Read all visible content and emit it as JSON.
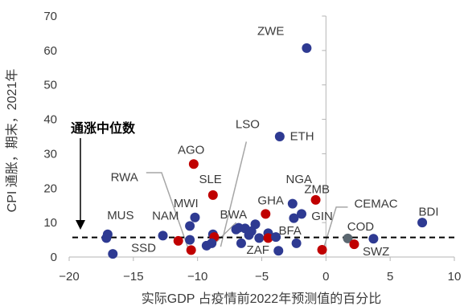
{
  "chart_data": {
    "type": "scatter",
    "xlabel": "实际GDP 占疫情前2022年预测值的百分比",
    "ylabel": "CPI 通胀，期末，2021年",
    "xlim": [
      -20,
      10
    ],
    "ylim": [
      0,
      70
    ],
    "x_ticks": [
      -20,
      -15,
      -10,
      -5,
      0,
      5,
      10
    ],
    "y_ticks": [
      0,
      10,
      20,
      30,
      40,
      50,
      60,
      70
    ],
    "x_tick_labels": [
      "−20",
      "−15",
      "−10",
      "−5",
      "0",
      "5",
      "10"
    ],
    "y_tick_labels": [
      "0",
      "10",
      "20",
      "30",
      "40",
      "50",
      "60",
      "70"
    ],
    "grid": false,
    "median": {
      "value": 5.7,
      "label": "通涨中位数"
    },
    "colors": {
      "blue": "#2E3A92",
      "red": "#C00000",
      "gray": "#5B6770",
      "median": "#000000",
      "axis": "#b5b5b5"
    },
    "points": [
      {
        "x": -1.5,
        "y": 60.7,
        "color": "blue"
      },
      {
        "x": -3.6,
        "y": 35.0,
        "color": "blue"
      },
      {
        "x": -10.3,
        "y": 27.0,
        "color": "red"
      },
      {
        "x": -8.8,
        "y": 18.0,
        "color": "red"
      },
      {
        "x": -2.6,
        "y": 15.5,
        "color": "blue"
      },
      {
        "x": -0.8,
        "y": 16.6,
        "color": "red"
      },
      {
        "x": -4.7,
        "y": 12.5,
        "color": "red"
      },
      {
        "x": -1.9,
        "y": 12.5,
        "color": "blue"
      },
      {
        "x": -2.5,
        "y": 11.3,
        "color": "blue"
      },
      {
        "x": -10.2,
        "y": 11.5,
        "color": "blue"
      },
      {
        "x": -10.6,
        "y": 9.0,
        "color": "blue"
      },
      {
        "x": 7.5,
        "y": 10.0,
        "color": "blue"
      },
      {
        "x": -5.5,
        "y": 9.5,
        "color": "blue"
      },
      {
        "x": -6.8,
        "y": 8.5,
        "color": "blue"
      },
      {
        "x": -6.3,
        "y": 8.3,
        "color": "blue"
      },
      {
        "x": -7.0,
        "y": 8.0,
        "color": "blue"
      },
      {
        "x": -5.8,
        "y": 7.5,
        "color": "blue"
      },
      {
        "x": -8.8,
        "y": 6.6,
        "color": "blue"
      },
      {
        "x": -6.0,
        "y": 6.4,
        "color": "blue"
      },
      {
        "x": -5.2,
        "y": 5.5,
        "color": "blue"
      },
      {
        "x": -4.5,
        "y": 6.9,
        "color": "blue"
      },
      {
        "x": -17.0,
        "y": 6.6,
        "color": "blue"
      },
      {
        "x": -17.1,
        "y": 5.5,
        "color": "blue"
      },
      {
        "x": -12.7,
        "y": 6.2,
        "color": "blue"
      },
      {
        "x": -11.5,
        "y": 4.7,
        "color": "red"
      },
      {
        "x": -8.7,
        "y": 5.8,
        "color": "red"
      },
      {
        "x": -4.5,
        "y": 5.5,
        "color": "red"
      },
      {
        "x": -10.6,
        "y": 5.0,
        "color": "blue"
      },
      {
        "x": -6.6,
        "y": 4.0,
        "color": "blue"
      },
      {
        "x": -9.3,
        "y": 3.3,
        "color": "blue"
      },
      {
        "x": -8.9,
        "y": 4.0,
        "color": "blue"
      },
      {
        "x": -3.9,
        "y": 5.8,
        "color": "blue"
      },
      {
        "x": -2.3,
        "y": 4.0,
        "color": "blue"
      },
      {
        "x": -10.5,
        "y": 2.0,
        "color": "red"
      },
      {
        "x": -3.7,
        "y": 1.8,
        "color": "blue"
      },
      {
        "x": -0.3,
        "y": 2.1,
        "color": "red"
      },
      {
        "x": -16.6,
        "y": 0.9,
        "color": "blue"
      },
      {
        "x": 1.7,
        "y": 5.4,
        "color": "gray"
      },
      {
        "x": 2.2,
        "y": 3.7,
        "color": "red"
      },
      {
        "x": 3.7,
        "y": 5.3,
        "color": "blue"
      }
    ],
    "annotations": [
      {
        "label": "ZWE",
        "x": -4.3,
        "y": 64.5,
        "anchor": "middle"
      },
      {
        "label": "ETH",
        "x": -2.8,
        "y": 34.0,
        "anchor": "start"
      },
      {
        "label": "AGO",
        "x": -10.5,
        "y": 30.0,
        "anchor": "middle"
      },
      {
        "label": "LSO",
        "x": -6.1,
        "y": 37.5,
        "anchor": "middle"
      },
      {
        "label": "RWA",
        "x": -15.7,
        "y": 22.0,
        "anchor": "middle"
      },
      {
        "label": "SLE",
        "x": -9.0,
        "y": 21.5,
        "anchor": "middle"
      },
      {
        "label": "NGA",
        "x": -2.1,
        "y": 21.5,
        "anchor": "middle"
      },
      {
        "label": "ZMB",
        "x": -0.7,
        "y": 18.5,
        "anchor": "middle"
      },
      {
        "label": "GHA",
        "x": -4.3,
        "y": 15.3,
        "anchor": "middle"
      },
      {
        "label": "MWI",
        "x": -10.9,
        "y": 14.5,
        "anchor": "middle"
      },
      {
        "label": "CEMAC",
        "x": 2.2,
        "y": 14.3,
        "anchor": "start"
      },
      {
        "label": "MUS",
        "x": -16.0,
        "y": 11.0,
        "anchor": "middle"
      },
      {
        "label": "NAM",
        "x": -12.5,
        "y": 10.8,
        "anchor": "middle"
      },
      {
        "label": "BWA",
        "x": -7.2,
        "y": 11.2,
        "anchor": "middle"
      },
      {
        "label": "GIN",
        "x": -0.3,
        "y": 10.7,
        "anchor": "middle"
      },
      {
        "label": "BDI",
        "x": 8.0,
        "y": 12.0,
        "anchor": "middle"
      },
      {
        "label": "COD",
        "x": 2.7,
        "y": 7.7,
        "anchor": "middle"
      },
      {
        "label": "BFA",
        "x": -2.8,
        "y": 6.5,
        "anchor": "middle"
      },
      {
        "label": "SSD",
        "x": -14.2,
        "y": 1.5,
        "anchor": "middle"
      },
      {
        "label": "ZAF",
        "x": -5.3,
        "y": 0.9,
        "anchor": "middle"
      },
      {
        "label": "SWZ",
        "x": 3.9,
        "y": 0.5,
        "anchor": "middle"
      }
    ],
    "leaders": [
      {
        "from": [
          -14.0,
          24.5
        ],
        "via": [
          -12.8,
          24.5
        ],
        "to": [
          -10.7,
          2.2
        ]
      },
      {
        "from": [
          -6.2,
          33.5
        ],
        "to": [
          -8.2,
          3.0
        ]
      },
      {
        "from": [
          -7.0,
          10.0
        ],
        "to": [
          -9.1,
          2.3
        ]
      },
      {
        "from": [
          1.7,
          14.5
        ],
        "via": [
          0.8,
          14.5
        ],
        "to": [
          -0.2,
          2.3
        ]
      }
    ]
  }
}
